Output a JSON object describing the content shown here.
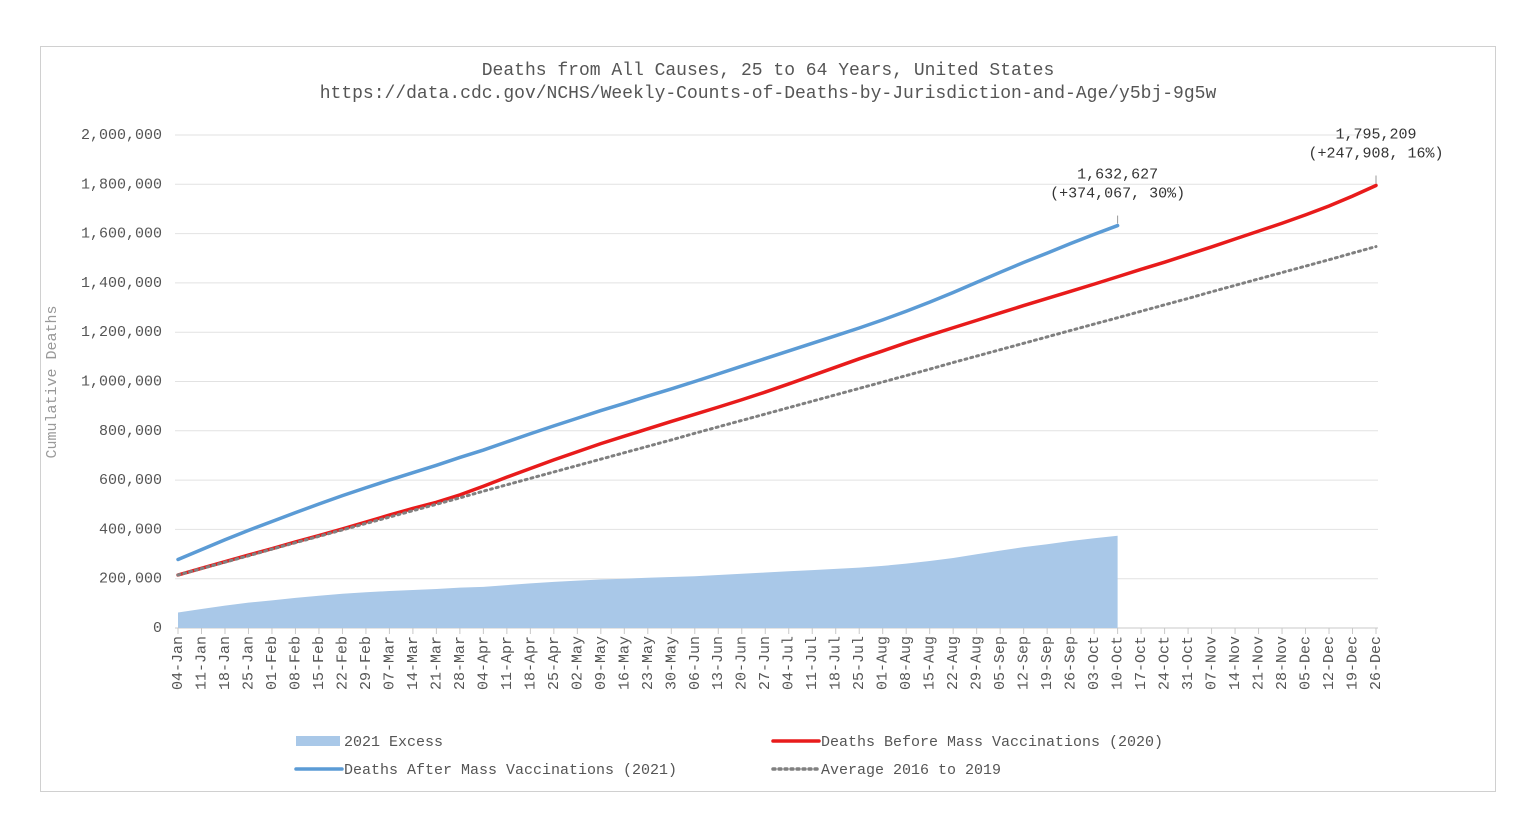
{
  "chart_data": {
    "type": "line",
    "title": "Deaths from All Causes, 25 to 64 Years, United States",
    "subtitle": "https://data.cdc.gov/NCHS/Weekly-Counts-of-Deaths-by-Jurisdiction-and-Age/y5bj-9g5w",
    "y_label": "Cumulative Deaths",
    "categories": [
      "04-Jan",
      "11-Jan",
      "18-Jan",
      "25-Jan",
      "01-Feb",
      "08-Feb",
      "15-Feb",
      "22-Feb",
      "29-Feb",
      "07-Mar",
      "14-Mar",
      "21-Mar",
      "28-Mar",
      "04-Apr",
      "11-Apr",
      "18-Apr",
      "25-Apr",
      "02-May",
      "09-May",
      "16-May",
      "23-May",
      "30-May",
      "06-Jun",
      "13-Jun",
      "20-Jun",
      "27-Jun",
      "04-Jul",
      "11-Jul",
      "18-Jul",
      "25-Jul",
      "01-Aug",
      "08-Aug",
      "15-Aug",
      "22-Aug",
      "29-Aug",
      "05-Sep",
      "12-Sep",
      "19-Sep",
      "26-Sep",
      "03-Oct",
      "10-Oct",
      "17-Oct",
      "24-Oct",
      "31-Oct",
      "07-Nov",
      "14-Nov",
      "21-Nov",
      "28-Nov",
      "05-Dec",
      "12-Dec",
      "19-Dec",
      "26-Dec"
    ],
    "ylim": [
      0,
      2000000
    ],
    "yticks": [
      0,
      {
        "value": 200000,
        "label": "200,000"
      },
      {
        "value": 400000,
        "label": "400,000"
      },
      {
        "value": 600000,
        "label": "600,000"
      },
      {
        "value": 800000,
        "label": "800,000"
      },
      {
        "value": 1000000,
        "label": "1,000,000"
      },
      {
        "value": 1200000,
        "label": "1,200,000"
      },
      {
        "value": 1400000,
        "label": "1,400,000"
      },
      {
        "value": 1600000,
        "label": "1,600,000"
      },
      {
        "value": 1800000,
        "label": "1,800,000"
      },
      {
        "value": 2000000,
        "label": "2,000,000"
      }
    ],
    "grid": true,
    "legend": "bottom",
    "series": [
      {
        "name": "2021 Excess",
        "kind": "area",
        "color": "#a9c8e8",
        "values": [
          63000,
          77000,
          91000,
          103000,
          112000,
          122000,
          131000,
          139000,
          145000,
          150000,
          154000,
          158000,
          164000,
          167000,
          174000,
          181000,
          187000,
          192000,
          197000,
          200000,
          204000,
          207000,
          210000,
          215000,
          220000,
          225000,
          230000,
          235000,
          240000,
          245000,
          252000,
          261000,
          272000,
          284000,
          299000,
          314000,
          328000,
          340000,
          353000,
          364000,
          374067,
          null,
          null,
          null,
          null,
          null,
          null,
          null,
          null,
          null,
          null,
          null
        ]
      },
      {
        "name": "Deaths Before Mass Vaccinations (2020)",
        "kind": "line",
        "color": "#e81b1b",
        "values": [
          215000,
          242000,
          269000,
          296000,
          322000,
          349000,
          375000,
          402000,
          430000,
          458000,
          485000,
          510000,
          540000,
          575000,
          612000,
          647000,
          682000,
          715000,
          748000,
          778000,
          808000,
          838000,
          867000,
          896000,
          926000,
          957000,
          990000,
          1024000,
          1058000,
          1092000,
          1124000,
          1157000,
          1188000,
          1218000,
          1248000,
          1278000,
          1308000,
          1337000,
          1366000,
          1395000,
          1425000,
          1455000,
          1484000,
          1515000,
          1546000,
          1578000,
          1610000,
          1642000,
          1676000,
          1712000,
          1752000,
          1795209
        ]
      },
      {
        "name": "Deaths After Mass Vaccinations (2021)",
        "kind": "line",
        "color": "#5b9bd5",
        "values": [
          278000,
          318000,
          358000,
          396000,
          432000,
          468000,
          503000,
          537000,
          569000,
          600000,
          630000,
          660000,
          692000,
          722000,
          755000,
          788000,
          820000,
          851000,
          882000,
          911000,
          941000,
          970000,
          1000000,
          1031000,
          1062000,
          1093000,
          1124000,
          1155000,
          1186000,
          1217000,
          1250000,
          1285000,
          1322000,
          1361000,
          1402000,
          1443000,
          1483000,
          1521000,
          1560000,
          1597000,
          1632627,
          null,
          null,
          null,
          null,
          null,
          null,
          null,
          null,
          null,
          null,
          null
        ]
      },
      {
        "name": "Average 2016 to 2019",
        "kind": "dotted",
        "color": "#808080",
        "values": [
          215000,
          241000,
          267000,
          293000,
          320000,
          346000,
          372000,
          398000,
          424000,
          450000,
          476000,
          502000,
          528000,
          555000,
          581000,
          607000,
          633000,
          659000,
          685000,
          711000,
          737000,
          763000,
          790000,
          816000,
          842000,
          868000,
          894000,
          920000,
          946000,
          972000,
          998000,
          1024000,
          1050000,
          1077000,
          1103000,
          1129000,
          1155000,
          1181000,
          1207000,
          1233000,
          1258560,
          1285000,
          1311000,
          1337000,
          1364000,
          1390000,
          1416000,
          1442000,
          1468000,
          1494000,
          1521000,
          1547301
        ]
      }
    ],
    "annotations": [
      {
        "text": [
          "1,632,627",
          "(+374,067, 30%)"
        ],
        "x": "10-Oct",
        "y": 1632627
      },
      {
        "text": [
          "1,795,209",
          "(+247,908, 16%)"
        ],
        "x": "26-Dec",
        "y": 1795209
      }
    ]
  }
}
